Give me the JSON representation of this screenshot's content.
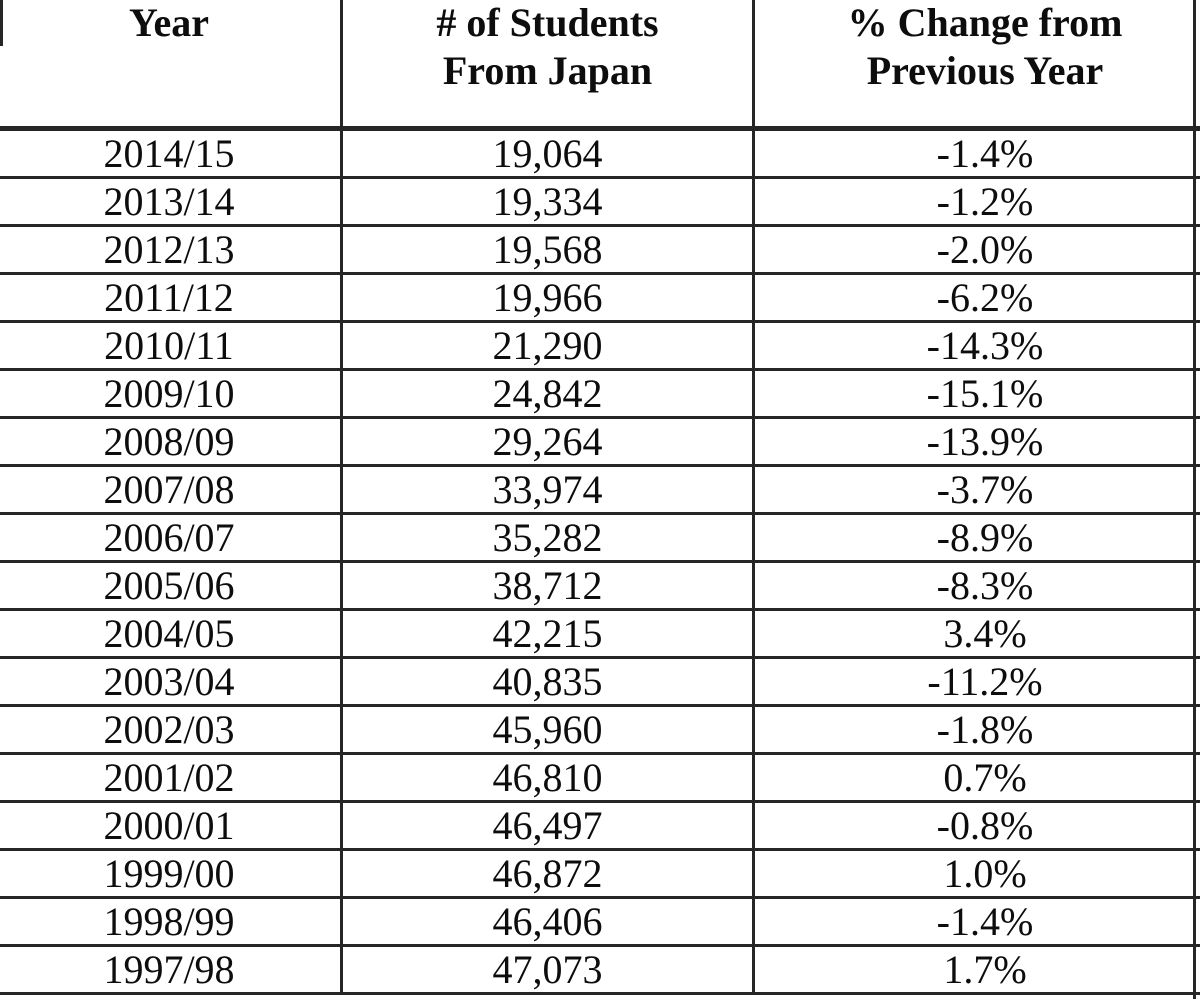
{
  "table": {
    "columns": [
      {
        "id": "year",
        "label_lines": [
          "Year",
          ""
        ]
      },
      {
        "id": "students",
        "label_lines": [
          "# of Students",
          "From Japan"
        ]
      },
      {
        "id": "pct_change",
        "label_lines": [
          "% Change from",
          "Previous Year"
        ]
      }
    ],
    "rows": [
      {
        "year": "2014/15",
        "students": "19,064",
        "pct_change": "-1.4%"
      },
      {
        "year": "2013/14",
        "students": "19,334",
        "pct_change": "-1.2%"
      },
      {
        "year": "2012/13",
        "students": "19,568",
        "pct_change": "-2.0%"
      },
      {
        "year": "2011/12",
        "students": "19,966",
        "pct_change": "-6.2%"
      },
      {
        "year": "2010/11",
        "students": "21,290",
        "pct_change": "-14.3%"
      },
      {
        "year": "2009/10",
        "students": "24,842",
        "pct_change": "-15.1%"
      },
      {
        "year": "2008/09",
        "students": "29,264",
        "pct_change": "-13.9%"
      },
      {
        "year": "2007/08",
        "students": "33,974",
        "pct_change": "-3.7%"
      },
      {
        "year": "2006/07",
        "students": "35,282",
        "pct_change": "-8.9%"
      },
      {
        "year": "2005/06",
        "students": "38,712",
        "pct_change": "-8.3%"
      },
      {
        "year": "2004/05",
        "students": "42,215",
        "pct_change": "3.4%"
      },
      {
        "year": "2003/04",
        "students": "40,835",
        "pct_change": "-11.2%"
      },
      {
        "year": "2002/03",
        "students": "45,960",
        "pct_change": "-1.8%"
      },
      {
        "year": "2001/02",
        "students": "46,810",
        "pct_change": "0.7%"
      },
      {
        "year": "2000/01",
        "students": "46,497",
        "pct_change": "-0.8%"
      },
      {
        "year": "1999/00",
        "students": "46,872",
        "pct_change": "1.0%"
      },
      {
        "year": "1998/99",
        "students": "46,406",
        "pct_change": "-1.4%"
      },
      {
        "year": "1997/98",
        "students": "47,073",
        "pct_change": "1.7%"
      }
    ]
  },
  "chart_data": {
    "type": "table",
    "title": "",
    "columns": [
      "Year",
      "# of Students From Japan",
      "% Change from Previous Year"
    ],
    "categories": [
      "2014/15",
      "2013/14",
      "2012/13",
      "2011/12",
      "2010/11",
      "2009/10",
      "2008/09",
      "2007/08",
      "2006/07",
      "2005/06",
      "2004/05",
      "2003/04",
      "2002/03",
      "2001/02",
      "2000/01",
      "1999/00",
      "1998/99",
      "1997/98"
    ],
    "series": [
      {
        "name": "# of Students From Japan",
        "values": [
          19064,
          19334,
          19568,
          19966,
          21290,
          24842,
          29264,
          33974,
          35282,
          38712,
          42215,
          40835,
          45960,
          46810,
          46497,
          46872,
          46406,
          47073
        ]
      },
      {
        "name": "% Change from Previous Year",
        "values": [
          -1.4,
          -1.2,
          -2.0,
          -6.2,
          -14.3,
          -15.1,
          -13.9,
          -3.7,
          -8.9,
          -8.3,
          3.4,
          -11.2,
          -1.8,
          0.7,
          -0.8,
          1.0,
          -1.4,
          1.7
        ]
      }
    ]
  }
}
